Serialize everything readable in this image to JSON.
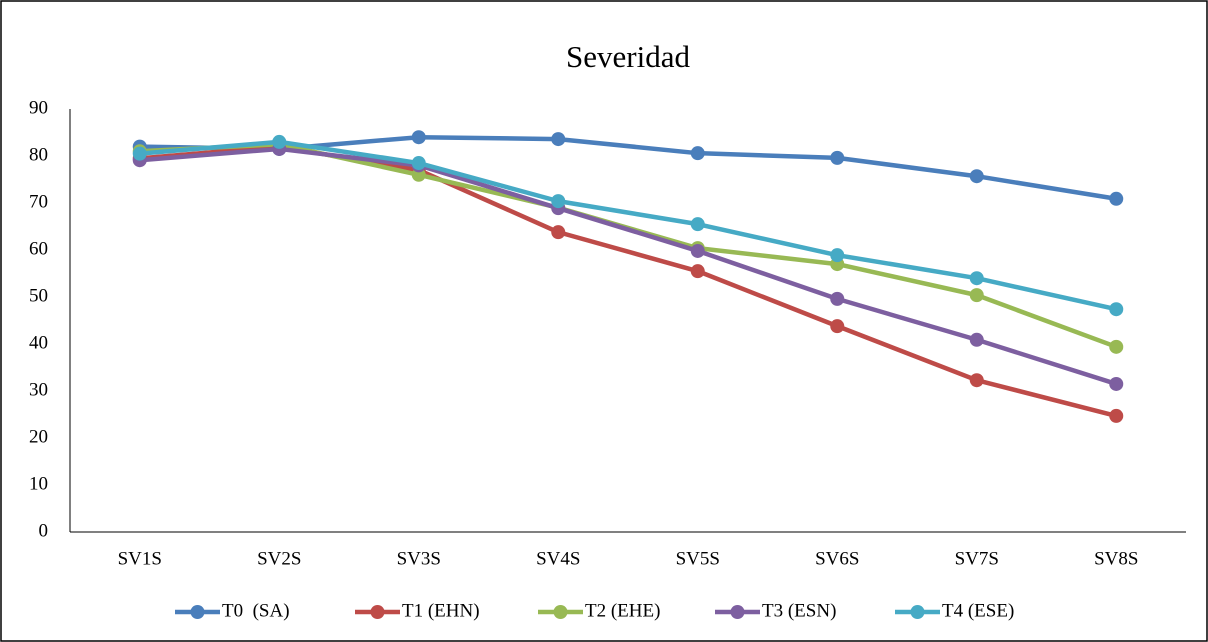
{
  "chart_data": {
    "type": "line",
    "title": "Severidad",
    "categories": [
      "SV1S",
      "SV2S",
      "SV3S",
      "SV4S",
      "SV5S",
      "SV6S",
      "SV7S",
      "SV8S"
    ],
    "series": [
      {
        "name": "T0  (SA)",
        "color": "#4a7ebb",
        "values": [
          82,
          81.5,
          84,
          83.6,
          80.6,
          79.6,
          75.7,
          70.9
        ]
      },
      {
        "name": "T1 (EHN)",
        "color": "#be4b48",
        "values": [
          79.5,
          82,
          77,
          63.8,
          55.5,
          43.8,
          32.3,
          24.7
        ]
      },
      {
        "name": "T2 (EHE)",
        "color": "#98b954",
        "values": [
          81,
          82.5,
          76,
          69,
          60.4,
          57,
          50.4,
          39.4
        ]
      },
      {
        "name": "T3 (ESN)",
        "color": "#7d5fa0",
        "values": [
          79.1,
          81.5,
          78,
          68.9,
          59.8,
          49.6,
          40.9,
          31.5
        ]
      },
      {
        "name": "T4 (ESE)",
        "color": "#46aac5",
        "values": [
          80.5,
          83,
          78.5,
          70.4,
          65.5,
          58.9,
          54,
          47.4
        ]
      }
    ],
    "ylim": [
      0,
      90
    ],
    "yticks": [
      0,
      10,
      20,
      30,
      40,
      50,
      60,
      70,
      80,
      90
    ],
    "grid": false,
    "legend": "bottom"
  }
}
